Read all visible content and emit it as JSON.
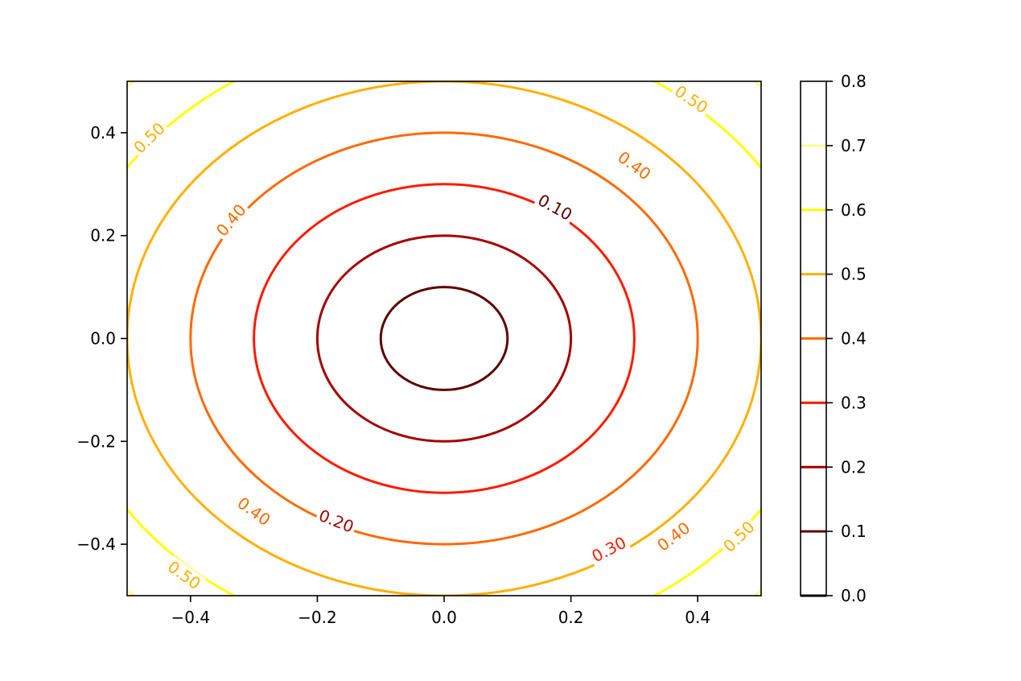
{
  "chart_data": {
    "type": "contour",
    "function": "sqrt(x^2 + y^2)",
    "title": "",
    "xlabel": "",
    "ylabel": "",
    "xlim": [
      -0.5,
      0.5
    ],
    "ylim": [
      -0.5,
      0.5
    ],
    "x_ticks": [
      -0.4,
      -0.2,
      0.0,
      0.2,
      0.4
    ],
    "y_ticks": [
      -0.4,
      -0.2,
      0.0,
      0.2,
      0.4
    ],
    "x_tick_labels": [
      "−0.4",
      "−0.2",
      "0.0",
      "0.2",
      "0.4"
    ],
    "y_tick_labels": [
      "−0.4",
      "−0.2",
      "0.0",
      "0.2",
      "0.4"
    ],
    "levels": [
      {
        "value": 0.0,
        "color": "#000000"
      },
      {
        "value": 0.1,
        "color": "#5c0000"
      },
      {
        "value": 0.2,
        "color": "#a30000"
      },
      {
        "value": 0.3,
        "color": "#ff1a00"
      },
      {
        "value": 0.4,
        "color": "#ff6a00"
      },
      {
        "value": 0.5,
        "color": "#ffb000"
      },
      {
        "value": 0.6,
        "color": "#ffff00"
      },
      {
        "value": 0.7,
        "color": "#ffff8a"
      }
    ],
    "contour_labels": [
      {
        "text": "0.10",
        "level": 0.1,
        "x": 0.175,
        "y": 0.255
      },
      {
        "text": "0.20",
        "level": 0.2,
        "x": -0.17,
        "y": -0.355
      },
      {
        "text": "0.30",
        "level": 0.3,
        "x": 0.26,
        "y": -0.41
      },
      {
        "text": "0.40",
        "level": 0.4,
        "x": -0.336,
        "y": 0.23
      },
      {
        "text": "0.40",
        "level": 0.4,
        "x": 0.3,
        "y": 0.336
      },
      {
        "text": "0.40",
        "level": 0.4,
        "x": -0.3,
        "y": -0.336
      },
      {
        "text": "0.40",
        "level": 0.4,
        "x": 0.362,
        "y": -0.385
      },
      {
        "text": "0.50",
        "level": 0.5,
        "x": -0.465,
        "y": 0.39
      },
      {
        "text": "0.50",
        "level": 0.5,
        "x": 0.39,
        "y": 0.465
      },
      {
        "text": "0.50",
        "level": 0.5,
        "x": -0.41,
        "y": -0.46
      },
      {
        "text": "0.50",
        "level": 0.5,
        "x": 0.465,
        "y": -0.385
      }
    ],
    "colorbar": {
      "range": [
        0.0,
        0.8
      ],
      "ticks": [
        0.0,
        0.1,
        0.2,
        0.3,
        0.4,
        0.5,
        0.6,
        0.7,
        0.8
      ],
      "tick_labels": [
        "0.0",
        "0.1",
        "0.2",
        "0.3",
        "0.4",
        "0.5",
        "0.6",
        "0.7",
        "0.8"
      ]
    }
  }
}
